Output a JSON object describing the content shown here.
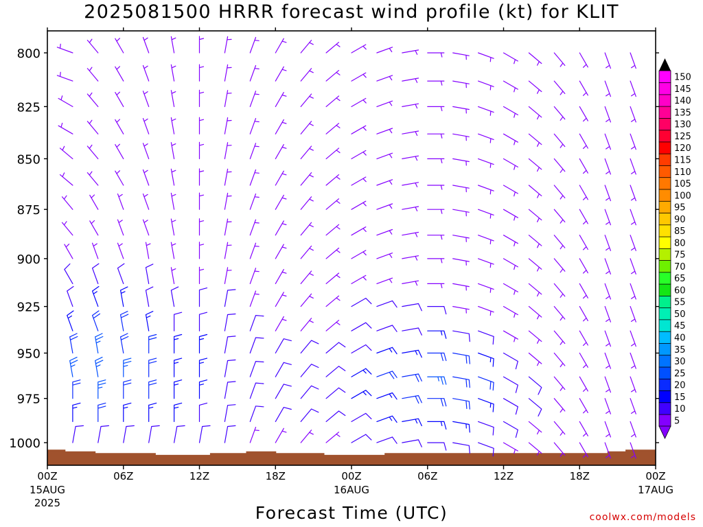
{
  "title": "2025081500 HRRR forecast wind profile (kt) for KLIT",
  "credit": "coolwx.com/models",
  "chart_data": {
    "type": "wind_barb_time_height",
    "xlabel": "Forecast Time (UTC)",
    "x_ticks": [
      {
        "hour": 0,
        "label": "00Z",
        "sub1": "15AUG",
        "sub2": "2025"
      },
      {
        "hour": 6,
        "label": "06Z"
      },
      {
        "hour": 12,
        "label": "12Z"
      },
      {
        "hour": 18,
        "label": "18Z"
      },
      {
        "hour": 24,
        "label": "00Z",
        "sub1": "16AUG"
      },
      {
        "hour": 30,
        "label": "06Z"
      },
      {
        "hour": 36,
        "label": "12Z"
      },
      {
        "hour": 42,
        "label": "18Z"
      },
      {
        "hour": 48,
        "label": "00Z",
        "sub1": "17AUG"
      }
    ],
    "x_range_hours": [
      0,
      48
    ],
    "y_axis": "pressure (mb)",
    "y_range_mb": [
      790,
      1013
    ],
    "y_ticks": [
      800,
      825,
      850,
      875,
      900,
      925,
      950,
      975,
      1000
    ],
    "surface_pressure_mb": [
      1004,
      1004,
      1004,
      1005,
      1005,
      1005,
      1005,
      1005,
      1006,
      1006,
      1006,
      1006,
      1006,
      1006,
      1006,
      1006,
      1006,
      1006,
      1007,
      1007,
      1007,
      1007,
      1007,
      1007,
      1007,
      1007,
      1007,
      1006,
      1006,
      1006,
      1006,
      1006,
      1006,
      1005,
      1005,
      1005,
      1005,
      1005,
      1006,
      1006,
      1006,
      1006,
      1006,
      1006,
      1006,
      1006,
      1007,
      1007,
      1007,
      1007,
      1007,
      1007,
      1007,
      1007,
      1007,
      1007,
      1006,
      1006,
      1006,
      1006,
      1006,
      1006,
      1006,
      1006,
      1006,
      1006,
      1006,
      1006,
      1006,
      1006,
      1006,
      1006,
      1006,
      1006,
      1006,
      1006,
      1006,
      1006,
      1006,
      1006,
      1006,
      1006,
      1006,
      1006,
      1006,
      1006,
      1006,
      1006,
      1006,
      1006,
      1006,
      1006,
      1006,
      1005,
      1005,
      1005,
      1004,
      1004,
      1004,
      1004,
      1004
    ],
    "barb_levels_mb": [
      800,
      813,
      825,
      838,
      850,
      863,
      875,
      888,
      900,
      913,
      925,
      938,
      950,
      963,
      975,
      988,
      1000
    ],
    "barb_hours": [
      2,
      4,
      6,
      8,
      10,
      12,
      14,
      16,
      18,
      20,
      22,
      24,
      26,
      28,
      30,
      32,
      34,
      36,
      38,
      40,
      42,
      44,
      46
    ],
    "wind_dir_deg": [
      [
        290,
        320,
        330,
        340,
        350,
        0,
        10,
        20,
        30,
        40,
        50,
        60,
        70,
        80,
        90,
        100,
        110,
        120,
        130,
        140,
        150,
        160,
        160
      ],
      [
        290,
        320,
        330,
        340,
        350,
        0,
        10,
        20,
        30,
        40,
        50,
        60,
        70,
        80,
        90,
        100,
        110,
        120,
        130,
        140,
        150,
        160,
        160
      ],
      [
        300,
        320,
        330,
        340,
        350,
        0,
        10,
        20,
        30,
        40,
        50,
        60,
        70,
        80,
        90,
        100,
        110,
        120,
        130,
        140,
        150,
        160,
        160
      ],
      [
        300,
        320,
        330,
        340,
        350,
        0,
        10,
        20,
        30,
        40,
        50,
        60,
        70,
        80,
        90,
        100,
        110,
        120,
        130,
        140,
        150,
        160,
        160
      ],
      [
        310,
        320,
        330,
        340,
        350,
        0,
        10,
        20,
        30,
        40,
        50,
        60,
        70,
        80,
        90,
        100,
        110,
        120,
        130,
        140,
        150,
        160,
        160
      ],
      [
        310,
        320,
        330,
        340,
        350,
        0,
        10,
        20,
        30,
        40,
        50,
        60,
        70,
        80,
        90,
        100,
        110,
        120,
        130,
        140,
        150,
        160,
        160
      ],
      [
        320,
        330,
        340,
        340,
        350,
        0,
        10,
        20,
        30,
        40,
        50,
        60,
        70,
        80,
        90,
        100,
        110,
        120,
        130,
        140,
        150,
        160,
        160
      ],
      [
        320,
        330,
        340,
        340,
        350,
        0,
        10,
        20,
        30,
        40,
        50,
        60,
        70,
        80,
        90,
        100,
        110,
        120,
        130,
        140,
        150,
        160,
        160
      ],
      [
        330,
        340,
        340,
        350,
        350,
        0,
        10,
        20,
        30,
        40,
        50,
        60,
        70,
        80,
        90,
        100,
        110,
        120,
        130,
        140,
        150,
        160,
        160
      ],
      [
        330,
        340,
        340,
        350,
        350,
        0,
        10,
        20,
        30,
        40,
        50,
        60,
        70,
        80,
        90,
        100,
        110,
        120,
        130,
        140,
        150,
        160,
        160
      ],
      [
        340,
        340,
        350,
        350,
        350,
        0,
        10,
        20,
        30,
        40,
        50,
        60,
        70,
        80,
        90,
        100,
        110,
        120,
        130,
        140,
        150,
        160,
        160
      ],
      [
        340,
        340,
        350,
        350,
        0,
        0,
        10,
        20,
        30,
        40,
        50,
        60,
        70,
        80,
        90,
        100,
        110,
        120,
        130,
        140,
        150,
        160,
        160
      ],
      [
        350,
        350,
        350,
        0,
        0,
        0,
        10,
        20,
        30,
        40,
        50,
        60,
        70,
        80,
        90,
        100,
        110,
        120,
        130,
        140,
        150,
        160,
        160
      ],
      [
        350,
        350,
        0,
        0,
        0,
        0,
        10,
        20,
        30,
        40,
        50,
        60,
        70,
        80,
        90,
        100,
        110,
        120,
        130,
        140,
        150,
        160,
        160
      ],
      [
        0,
        0,
        0,
        0,
        0,
        0,
        10,
        20,
        30,
        40,
        50,
        60,
        70,
        80,
        90,
        100,
        110,
        120,
        130,
        140,
        150,
        160,
        160
      ],
      [
        0,
        0,
        0,
        0,
        0,
        0,
        10,
        20,
        30,
        40,
        50,
        60,
        70,
        80,
        90,
        100,
        110,
        120,
        130,
        140,
        150,
        160,
        160
      ],
      [
        10,
        10,
        10,
        10,
        10,
        10,
        10,
        20,
        30,
        40,
        50,
        60,
        70,
        80,
        90,
        100,
        110,
        120,
        130,
        140,
        150,
        160,
        160
      ]
    ],
    "wind_speed_kt": [
      [
        5,
        5,
        5,
        5,
        5,
        5,
        5,
        5,
        5,
        5,
        5,
        5,
        5,
        5,
        5,
        5,
        5,
        5,
        5,
        5,
        5,
        5,
        5
      ],
      [
        5,
        5,
        5,
        5,
        5,
        5,
        5,
        5,
        5,
        5,
        5,
        5,
        5,
        5,
        5,
        5,
        5,
        5,
        5,
        5,
        5,
        5,
        5
      ],
      [
        5,
        5,
        5,
        5,
        5,
        5,
        5,
        5,
        5,
        5,
        5,
        5,
        5,
        5,
        5,
        5,
        5,
        5,
        5,
        5,
        5,
        5,
        5
      ],
      [
        5,
        5,
        5,
        5,
        5,
        5,
        5,
        5,
        5,
        5,
        5,
        5,
        5,
        5,
        5,
        5,
        5,
        5,
        5,
        5,
        5,
        5,
        5
      ],
      [
        5,
        5,
        5,
        5,
        5,
        5,
        5,
        5,
        5,
        5,
        5,
        5,
        5,
        5,
        5,
        5,
        5,
        5,
        5,
        5,
        5,
        5,
        5
      ],
      [
        5,
        5,
        5,
        5,
        5,
        5,
        5,
        5,
        5,
        5,
        5,
        5,
        5,
        5,
        5,
        5,
        5,
        5,
        5,
        5,
        5,
        5,
        5
      ],
      [
        5,
        5,
        5,
        5,
        5,
        5,
        5,
        5,
        5,
        5,
        5,
        5,
        5,
        5,
        5,
        5,
        5,
        5,
        5,
        5,
        5,
        5,
        5
      ],
      [
        5,
        5,
        5,
        5,
        5,
        5,
        5,
        5,
        5,
        5,
        5,
        5,
        5,
        5,
        5,
        5,
        5,
        5,
        5,
        5,
        5,
        5,
        5
      ],
      [
        5,
        5,
        5,
        5,
        5,
        5,
        5,
        5,
        5,
        5,
        5,
        5,
        5,
        5,
        5,
        5,
        5,
        5,
        5,
        5,
        5,
        5,
        5
      ],
      [
        10,
        10,
        10,
        10,
        5,
        5,
        5,
        5,
        5,
        5,
        5,
        5,
        5,
        5,
        5,
        5,
        5,
        5,
        5,
        5,
        5,
        5,
        5
      ],
      [
        10,
        15,
        15,
        10,
        10,
        10,
        10,
        5,
        5,
        5,
        5,
        10,
        10,
        10,
        10,
        5,
        5,
        5,
        5,
        5,
        5,
        5,
        5
      ],
      [
        15,
        20,
        20,
        15,
        10,
        10,
        10,
        10,
        5,
        5,
        5,
        10,
        10,
        10,
        15,
        10,
        10,
        5,
        5,
        5,
        5,
        5,
        5
      ],
      [
        20,
        25,
        20,
        20,
        15,
        15,
        10,
        10,
        10,
        10,
        10,
        10,
        15,
        15,
        20,
        20,
        15,
        10,
        5,
        5,
        5,
        5,
        5
      ],
      [
        25,
        25,
        25,
        20,
        15,
        15,
        10,
        10,
        10,
        10,
        10,
        15,
        20,
        20,
        25,
        20,
        20,
        10,
        10,
        5,
        5,
        5,
        5
      ],
      [
        20,
        25,
        20,
        20,
        15,
        15,
        10,
        10,
        10,
        10,
        10,
        15,
        15,
        20,
        20,
        20,
        15,
        10,
        10,
        5,
        5,
        5,
        5
      ],
      [
        15,
        20,
        15,
        15,
        15,
        10,
        10,
        10,
        10,
        10,
        10,
        10,
        15,
        15,
        15,
        15,
        10,
        10,
        5,
        5,
        5,
        5,
        5
      ],
      [
        10,
        10,
        10,
        10,
        10,
        10,
        10,
        5,
        5,
        5,
        5,
        10,
        10,
        10,
        10,
        10,
        10,
        5,
        5,
        5,
        5,
        5,
        5
      ]
    ],
    "colorbar": {
      "unit": "kt",
      "levels": [
        5,
        10,
        15,
        20,
        25,
        30,
        35,
        40,
        45,
        50,
        55,
        60,
        65,
        70,
        75,
        80,
        85,
        90,
        95,
        100,
        105,
        110,
        115,
        120,
        125,
        130,
        135,
        140,
        145,
        150
      ],
      "colors": [
        "#8400ff",
        "#4000ff",
        "#0000ff",
        "#0a2bff",
        "#0050ff",
        "#0074ff",
        "#0098ff",
        "#00bcff",
        "#00e6d2",
        "#00f0b4",
        "#00f08c",
        "#14e614",
        "#28ff28",
        "#6ef000",
        "#b4f000",
        "#ffff00",
        "#ffe100",
        "#ffc800",
        "#ffaa00",
        "#ff8c00",
        "#ff7800",
        "#ff5a00",
        "#ff3c00",
        "#ff0000",
        "#ff0032",
        "#ff0064",
        "#ff0096",
        "#ff00c8",
        "#ff00e6",
        "#ff00ff"
      ],
      "extends": "both"
    }
  }
}
